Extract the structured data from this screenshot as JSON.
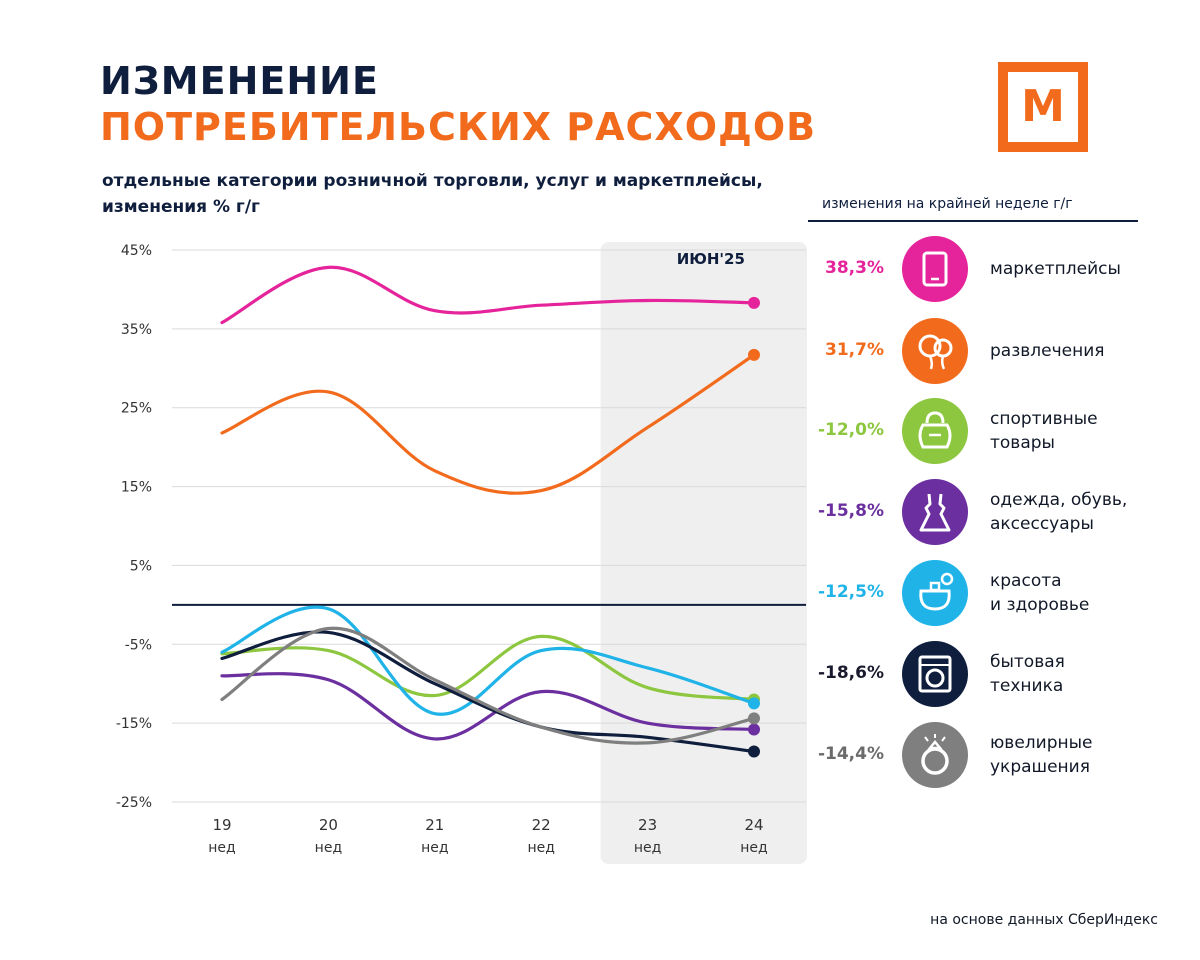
{
  "header": {
    "title_line1": "ИЗМЕНЕНИЕ",
    "title_line2": "ПОТРЕБИТЕЛЬСКИХ РАСХОДОВ",
    "subtitle": "отдельные категории розничной торговли, услуг  и маркетплейсы, изменения % г/г",
    "logo_letter": "М",
    "logo_color": "#F26B1D"
  },
  "legend": {
    "heading": "изменения на крайней неделе г/г",
    "items": [
      {
        "value_label": "38,3%",
        "label_lines": [
          "маркетплейсы"
        ],
        "color": "#E5249B",
        "icon": "tablet-icon",
        "value_color": "#E5249B"
      },
      {
        "value_label": "31,7%",
        "label_lines": [
          "развлечения"
        ],
        "color": "#F26B1D",
        "icon": "balloons-icon",
        "value_color": "#F26B1D"
      },
      {
        "value_label": "-12,0%",
        "label_lines": [
          "спортивные",
          "товары"
        ],
        "color": "#8DC63F",
        "icon": "kettlebell-icon",
        "value_color": "#8DC63F"
      },
      {
        "value_label": "-15,8%",
        "label_lines": [
          "одежда, обувь,",
          "аксессуары"
        ],
        "color": "#6B2FA0",
        "icon": "dress-icon",
        "value_color": "#6B2FA0"
      },
      {
        "value_label": "-12,5%",
        "label_lines": [
          "красота",
          "и здоровье"
        ],
        "color": "#1FB3E8",
        "icon": "perfume-icon",
        "value_color": "#1FB3E8"
      },
      {
        "value_label": "-18,6%",
        "label_lines": [
          "бытовая",
          "техника"
        ],
        "color": "#0F1E3D",
        "icon": "washing-machine-icon",
        "value_color": "#1a1a2e"
      },
      {
        "value_label": "-14,4%",
        "label_lines": [
          "ювелирные",
          "украшения"
        ],
        "color": "#7F7F7F",
        "icon": "ring-icon",
        "value_color": "#6b6b6b"
      }
    ]
  },
  "chart_data": {
    "type": "line",
    "title": "ИЗМЕНЕНИЕ ПОТРЕБИТЕЛЬСКИХ РАСХОДОВ",
    "x": [
      19,
      20,
      21,
      22,
      23,
      24
    ],
    "tick_labels": [
      "19",
      "20",
      "21",
      "22",
      "23",
      "24"
    ],
    "tick_sublabel": "нед",
    "y_ticks": [
      "45%",
      "35%",
      "25%",
      "15%",
      "5%",
      "-5%",
      "-15%",
      "-25%"
    ],
    "y_tick_values": [
      45,
      35,
      25,
      15,
      5,
      -5,
      -15,
      -25
    ],
    "ylim": [
      -25,
      45
    ],
    "zero_line": 0,
    "highlight": {
      "label": "ИЮН'25",
      "from_week": 23,
      "to_week": 24
    },
    "series": [
      {
        "name": "маркетплейсы",
        "color": "#E5249B",
        "values": [
          35.8,
          42.8,
          37.3,
          38.0,
          38.6,
          38.3
        ]
      },
      {
        "name": "развлечения",
        "color": "#F26B1D",
        "values": [
          21.8,
          27.0,
          17.0,
          14.5,
          22.5,
          31.7
        ]
      },
      {
        "name": "спортивные товары",
        "color": "#8DC63F",
        "values": [
          -6.2,
          -5.8,
          -11.5,
          -4.0,
          -10.5,
          -12.0
        ]
      },
      {
        "name": "одежда, обувь, аксессуары",
        "color": "#6B2FA0",
        "values": [
          -9.0,
          -9.5,
          -17.0,
          -11.0,
          -15.0,
          -15.8
        ]
      },
      {
        "name": "красота и здоровье",
        "color": "#1FB3E8",
        "values": [
          -6.0,
          -0.5,
          -13.8,
          -5.8,
          -8.0,
          -12.5
        ]
      },
      {
        "name": "бытовая техника",
        "color": "#0F1E3D",
        "values": [
          -6.8,
          -3.5,
          -10.0,
          -15.5,
          -16.8,
          -18.6
        ]
      },
      {
        "name": "ювелирные украшения",
        "color": "#7F7F7F",
        "values": [
          -12.0,
          -3.0,
          -9.5,
          -15.5,
          -17.5,
          -14.4
        ]
      }
    ]
  },
  "footer": {
    "source": "на основе данных СберИндекс"
  }
}
